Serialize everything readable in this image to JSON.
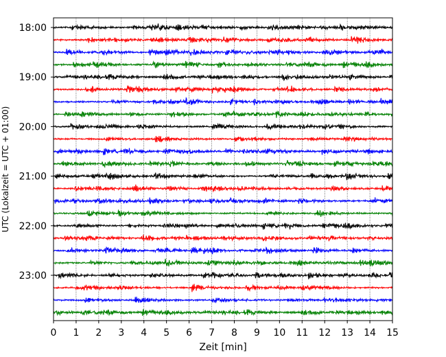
{
  "chart_data": {
    "type": "line",
    "title": "",
    "xlabel": "Zeit  [min]",
    "ylabel": "UTC (Lokalzeit = UTC + 01:00)",
    "xlim": [
      0,
      15
    ],
    "x_ticks": [
      "0",
      "1",
      "2",
      "3",
      "4",
      "5",
      "6",
      "7",
      "8",
      "9",
      "10",
      "11",
      "12",
      "13",
      "14",
      "15"
    ],
    "y_tick_labels": [
      "18:00",
      "19:00",
      "20:00",
      "21:00",
      "22:00",
      "23:00"
    ],
    "grid": "vertical dotted lines at each minute",
    "trace_interval_minutes": 15,
    "traces": [
      {
        "start": "18:00",
        "color": "#000000"
      },
      {
        "start": "18:15",
        "color": "#ff0000"
      },
      {
        "start": "18:30",
        "color": "#0000ff"
      },
      {
        "start": "18:45",
        "color": "#008000"
      },
      {
        "start": "19:00",
        "color": "#000000"
      },
      {
        "start": "19:15",
        "color": "#ff0000"
      },
      {
        "start": "19:30",
        "color": "#0000ff"
      },
      {
        "start": "19:45",
        "color": "#008000"
      },
      {
        "start": "20:00",
        "color": "#000000"
      },
      {
        "start": "20:15",
        "color": "#ff0000"
      },
      {
        "start": "20:30",
        "color": "#0000ff"
      },
      {
        "start": "20:45",
        "color": "#008000"
      },
      {
        "start": "21:00",
        "color": "#000000"
      },
      {
        "start": "21:15",
        "color": "#ff0000"
      },
      {
        "start": "21:30",
        "color": "#0000ff"
      },
      {
        "start": "21:45",
        "color": "#008000"
      },
      {
        "start": "22:00",
        "color": "#000000"
      },
      {
        "start": "22:15",
        "color": "#ff0000"
      },
      {
        "start": "22:30",
        "color": "#0000ff"
      },
      {
        "start": "22:45",
        "color": "#008000"
      },
      {
        "start": "23:00",
        "color": "#000000"
      },
      {
        "start": "23:15",
        "color": "#ff0000"
      },
      {
        "start": "23:30",
        "color": "#0000ff"
      },
      {
        "start": "23:45",
        "color": "#008000"
      }
    ]
  }
}
